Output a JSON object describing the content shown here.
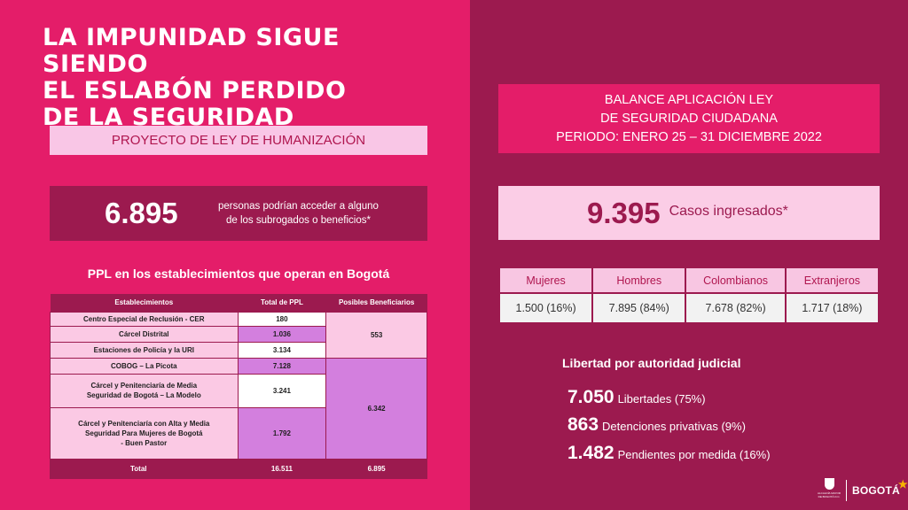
{
  "title_lines": [
    "LA IMPUNIDAD SIGUE",
    "SIENDO",
    "EL ESLABÓN PERDIDO",
    "DE LA SEGURIDAD"
  ],
  "subtitle": "PROYECTO DE LEY DE HUMANIZACIÓN",
  "beneficiaries": {
    "value": "6.895",
    "text_line1": "personas podrían acceder a alguno",
    "text_line2": "de los subrogados o beneficios*"
  },
  "ppl": {
    "title": "PPL en los establecimientos que operan en Bogotá",
    "headers": [
      "Establecimientos",
      "Total de PPL",
      "Posibles Beneficiarios"
    ],
    "rows": [
      {
        "name": [
          "Centro Especial de Reclusión - CER"
        ],
        "total": "180"
      },
      {
        "name": [
          "Cárcel Distrital"
        ],
        "total": "1.036"
      },
      {
        "name": [
          "Estaciones de Policía y la URI"
        ],
        "total": "3.134"
      },
      {
        "name": [
          "COBOG – La Picota"
        ],
        "total": "7.128"
      },
      {
        "name": [
          "Cárcel y Penitenciaría de Media",
          "Seguridad de Bogotá – La Modelo"
        ],
        "total": "3.241"
      },
      {
        "name": [
          "Cárcel y Penitenciaría con Alta y Media",
          "Seguridad Para Mujeres de Bogotá",
          "- Buen Pastor"
        ],
        "total": "1.792"
      }
    ],
    "beneficiaries_group1": "553",
    "beneficiaries_group2": "6.342",
    "total_label": "Total",
    "total_ppl": "16.511",
    "total_beneficiaries": "6.895"
  },
  "balance": {
    "line1": "BALANCE APLICACIÓN LEY",
    "line2": "DE SEGURIDAD CIUDADANA",
    "line3": "PERIODO: ENERO 25 – 31 DICIEMBRE 2022"
  },
  "cases": {
    "value": "9.395",
    "label": "Casos  ingresados*"
  },
  "demographics": {
    "headers": [
      "Mujeres",
      "Hombres",
      "Colombianos",
      "Extranjeros"
    ],
    "values": [
      "1.500 (16%)",
      "7.895 (84%)",
      "7.678 (82%)",
      "1.717 (18%)"
    ]
  },
  "libertad": {
    "title": "Libertad por autoridad judicial",
    "items": [
      {
        "num": "7.050",
        "text": "Libertades (75%)"
      },
      {
        "num": "863",
        "text": "Detenciones privativas (9%)"
      },
      {
        "num": "1.482",
        "text": "Pendientes por medida (16%)"
      }
    ]
  },
  "footer": {
    "seal_caption": "ALCALDÍA MAYOR DE BOGOTÁ D.C.",
    "bogota_logo": "BOGOTÁ"
  },
  "colors": {
    "pink": "#e41d69",
    "wine": "#9c1a4f",
    "light_pink": "#fbc9e4",
    "violet": "#d37fde"
  }
}
